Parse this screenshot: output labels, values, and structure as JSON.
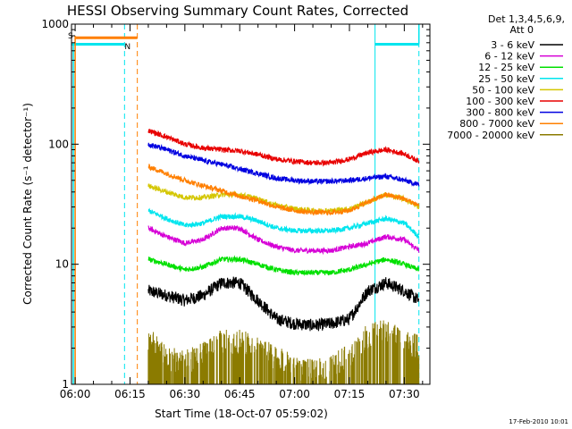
{
  "chart_data": {
    "type": "line",
    "title": "HESSI Observing Summary Count Rates, Corrected",
    "xlabel": "Start Time (18-Oct-07 05:59:02)",
    "ylabel": "Corrected Count Rate (s⁻¹ detector⁻¹)",
    "yscale": "log",
    "ylim": [
      1,
      1000
    ],
    "xlim_minutes": [
      -1,
      97
    ],
    "x_tick_labels": [
      "06:00",
      "06:15",
      "06:30",
      "06:45",
      "07:00",
      "07:15",
      "07:30"
    ],
    "x_tick_minutes": [
      0,
      15,
      30,
      45,
      60,
      75,
      90
    ],
    "y_tick_labels": [
      "1",
      "10",
      "100",
      "1000"
    ],
    "y_tick_values": [
      1,
      10,
      100,
      1000
    ],
    "legend_header": [
      "Det 1,3,4,5,6,9,",
      "Att 0"
    ],
    "legend_placement": "right",
    "timestamp": "17-Feb-2010 10:01",
    "markers": [
      {
        "label": "S",
        "color": "#ff7f00",
        "x_minutes": -1,
        "y": 800
      },
      {
        "label": "N",
        "color": "#00e5ee",
        "x_minutes": 14.5,
        "y": 650
      }
    ],
    "status_bars": [
      {
        "name": "S",
        "color": "#ff7f00",
        "x_start": 0,
        "x_end": 17,
        "y": 770
      },
      {
        "name": "N",
        "color": "#00e5ee",
        "x_start": -1,
        "x_end": 13.5,
        "y": 680
      },
      {
        "name": "N",
        "color": "#00e5ee",
        "x_start": 82,
        "x_end": 94,
        "y": 680
      }
    ],
    "night_lines": [
      {
        "color": "#00e5ee",
        "x_minutes": 13.5,
        "style": "dashed"
      },
      {
        "color": "#ff7f00",
        "x_minutes": 17,
        "style": "dashed"
      },
      {
        "color": "#00e5ee",
        "x_minutes": 82,
        "style": "solid"
      },
      {
        "color": "#00e5ee",
        "x_minutes": 94,
        "style": "dashed"
      }
    ],
    "x_minutes": [
      20,
      25,
      30,
      35,
      40,
      45,
      50,
      55,
      60,
      65,
      70,
      75,
      80,
      85,
      90,
      94
    ],
    "series": [
      {
        "name": "3 - 6 keV",
        "color": "#000000",
        "values": [
          6,
          5.5,
          5,
          5.5,
          7,
          7,
          5,
          3.5,
          3.2,
          3.1,
          3.2,
          3.5,
          6,
          7,
          6,
          5
        ]
      },
      {
        "name": "6 - 12 keV",
        "color": "#d600d6",
        "values": [
          20,
          17,
          15,
          16,
          20,
          20,
          16,
          14,
          13,
          13,
          13,
          14,
          15,
          17,
          16,
          13
        ]
      },
      {
        "name": "12 - 25 keV",
        "color": "#00e000",
        "values": [
          11,
          10,
          9,
          9.5,
          11,
          11,
          10,
          9,
          8.5,
          8.5,
          8.5,
          9,
          10,
          11,
          10,
          9
        ]
      },
      {
        "name": "25 - 50 keV",
        "color": "#00e5ee",
        "values": [
          28,
          24,
          21,
          22,
          25,
          25,
          23,
          20,
          19,
          19,
          19,
          20,
          22,
          24,
          22,
          17
        ]
      },
      {
        "name": "50 - 100 keV",
        "color": "#d4c600",
        "values": [
          45,
          40,
          36,
          36,
          38,
          38,
          35,
          31,
          29,
          28,
          28,
          29,
          33,
          38,
          35,
          30
        ]
      },
      {
        "name": "100 - 300 keV",
        "color": "#e80000",
        "values": [
          130,
          115,
          100,
          93,
          90,
          88,
          82,
          75,
          72,
          70,
          70,
          75,
          85,
          90,
          83,
          72
        ]
      },
      {
        "name": "300 - 800 keV",
        "color": "#0000e0",
        "values": [
          100,
          90,
          80,
          73,
          68,
          62,
          57,
          52,
          50,
          49,
          49,
          50,
          52,
          54,
          50,
          46
        ]
      },
      {
        "name": "800 - 7000 keV",
        "color": "#ff7f00",
        "values": [
          65,
          57,
          50,
          45,
          41,
          37,
          34,
          30,
          28,
          27,
          27,
          28,
          33,
          38,
          35,
          31
        ]
      },
      {
        "name": "7000 - 20000 keV",
        "color": "#8b7b00",
        "values": [
          1.9,
          1.3,
          1.2,
          1.4,
          1.8,
          1.8,
          1.6,
          1.3,
          1.1,
          1,
          1.1,
          1.4,
          2,
          2.2,
          1.8,
          1.6
        ]
      }
    ]
  }
}
